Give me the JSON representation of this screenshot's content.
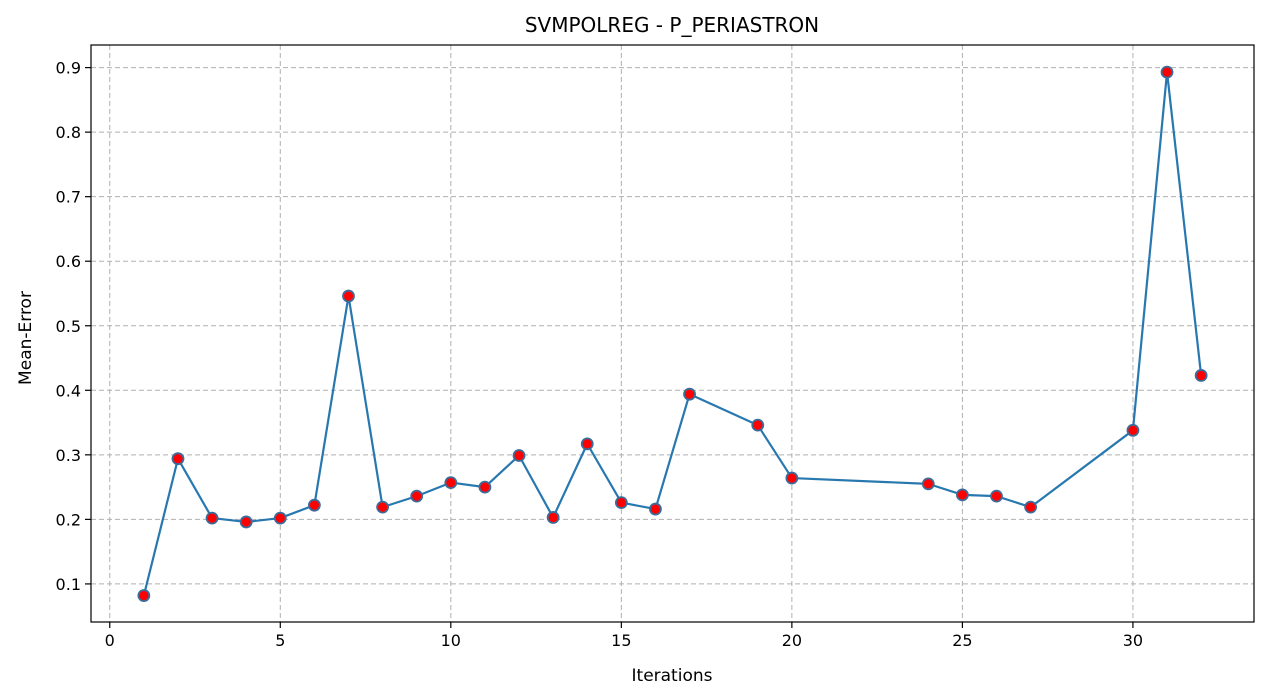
{
  "chart_data": {
    "type": "line",
    "title": "SVMPOLREG - P_PERIASTRON",
    "xlabel": "Iterations",
    "ylabel": "Mean-Error",
    "xlim": [
      -0.55,
      33.55
    ],
    "ylim": [
      0.041,
      0.935
    ],
    "xticks": [
      0,
      5,
      10,
      15,
      20,
      25,
      30
    ],
    "yticks": [
      0.1,
      0.2,
      0.3,
      0.4,
      0.5,
      0.6,
      0.7,
      0.8,
      0.9
    ],
    "xtick_labels": [
      "0",
      "5",
      "10",
      "15",
      "20",
      "25",
      "30"
    ],
    "ytick_labels": [
      "0.1",
      "0.2",
      "0.3",
      "0.4",
      "0.5",
      "0.6",
      "0.7",
      "0.8",
      "0.9"
    ],
    "grid": true,
    "legend": "none",
    "series": [
      {
        "line_color": "#2878b0",
        "marker_face_color": "#ff0000",
        "marker_edge_color": "#3b6d9a",
        "x": [
          1,
          2,
          3,
          4,
          5,
          6,
          7,
          8,
          9,
          10,
          11,
          12,
          13,
          14,
          15,
          16,
          17,
          19,
          20,
          24,
          25,
          26,
          27,
          30,
          31,
          32
        ],
        "y": [
          0.082,
          0.294,
          0.202,
          0.196,
          0.202,
          0.222,
          0.546,
          0.219,
          0.236,
          0.257,
          0.25,
          0.299,
          0.203,
          0.317,
          0.226,
          0.216,
          0.394,
          0.346,
          0.264,
          0.255,
          0.238,
          0.236,
          0.219,
          0.338,
          0.893,
          0.423
        ]
      }
    ]
  }
}
